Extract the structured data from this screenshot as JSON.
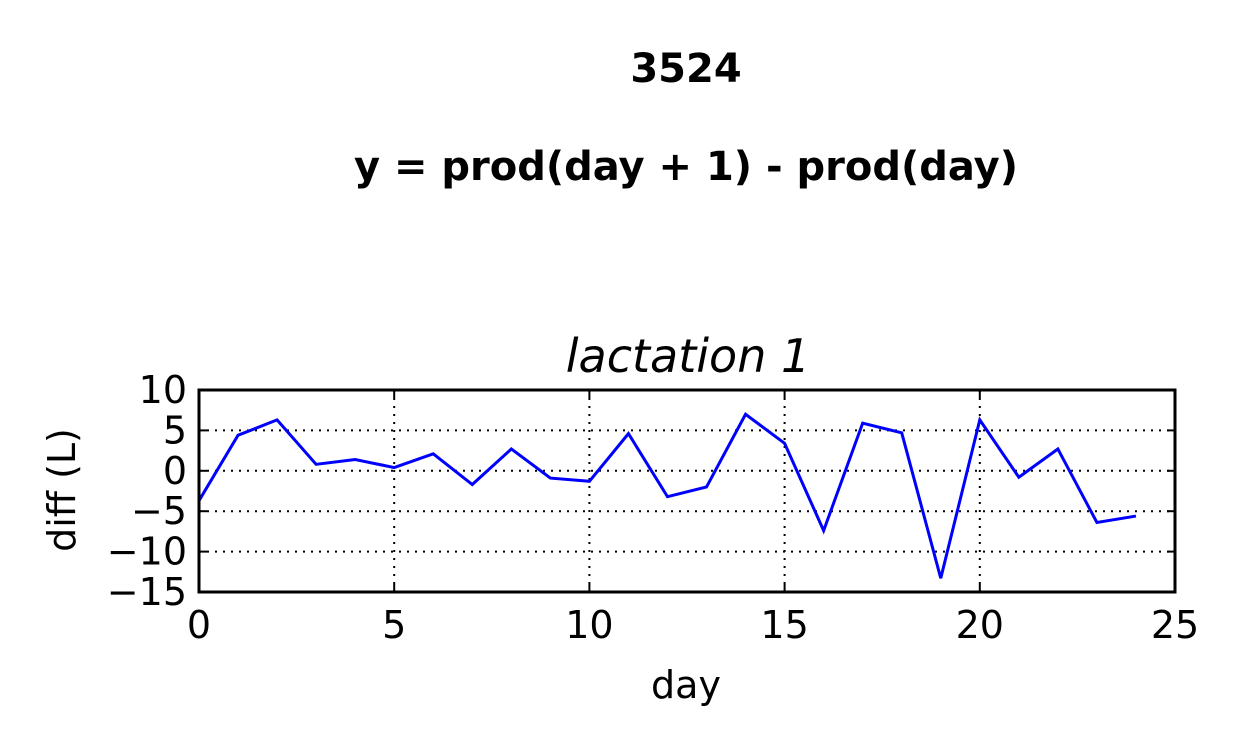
{
  "figure": {
    "title_line1": "3524",
    "title_line2": "y = prod(day + 1) - prod(day)"
  },
  "chart_data": {
    "type": "line",
    "title": "lactation 1",
    "xlabel": "day",
    "ylabel": "diff (L)",
    "xlim": [
      0,
      25
    ],
    "ylim": [
      -15,
      10
    ],
    "xticks": [
      0,
      5,
      10,
      15,
      20,
      25
    ],
    "yticks": [
      10,
      5,
      0,
      -5,
      -10,
      -15
    ],
    "xtick_labels": [
      "0",
      "5",
      "10",
      "15",
      "20",
      "25"
    ],
    "ytick_labels": [
      "10",
      "5",
      "0",
      "−5",
      "−10",
      "−15"
    ],
    "grid": true,
    "series": [
      {
        "color": "#0000ff",
        "x": [
          0,
          1,
          2,
          3,
          4,
          5,
          6,
          7,
          8,
          9,
          10,
          11,
          12,
          13,
          14,
          15,
          16,
          17,
          18,
          19,
          20,
          21,
          22,
          23,
          24
        ],
        "y": [
          -3.7,
          4.4,
          6.3,
          0.8,
          1.4,
          0.4,
          2.1,
          -1.7,
          2.7,
          -0.9,
          -1.3,
          4.6,
          -3.2,
          -2.0,
          7.0,
          3.4,
          -7.4,
          5.9,
          4.7,
          -13.3,
          6.3,
          -0.8,
          2.7,
          -6.4,
          -5.6
        ]
      }
    ]
  }
}
